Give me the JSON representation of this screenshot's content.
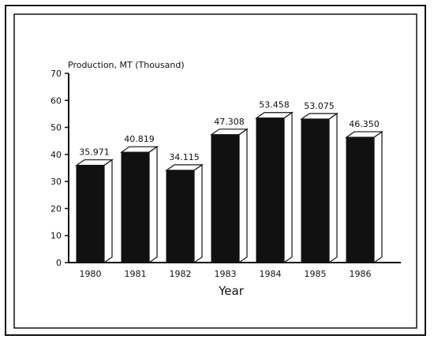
{
  "chart_data": {
    "type": "bar",
    "title": "",
    "ylabel": "Production, MT (Thousand)",
    "xlabel": "Year",
    "categories": [
      "1980",
      "1981",
      "1982",
      "1983",
      "1984",
      "1985",
      "1986"
    ],
    "values": [
      35.971,
      40.819,
      34.115,
      47.308,
      53.458,
      53.075,
      46.35
    ],
    "value_labels": [
      "35.971",
      "40.819",
      "34.115",
      "47.308",
      "53.458",
      "53.075",
      "46.350"
    ],
    "ylim": [
      0,
      70
    ],
    "yticks": [
      0,
      10,
      20,
      30,
      40,
      50,
      60,
      70
    ],
    "bar_style": "3d",
    "grid": false,
    "colors": {
      "bar": "#111111",
      "bar_side": "#ffffff",
      "axis": "#111111"
    }
  }
}
